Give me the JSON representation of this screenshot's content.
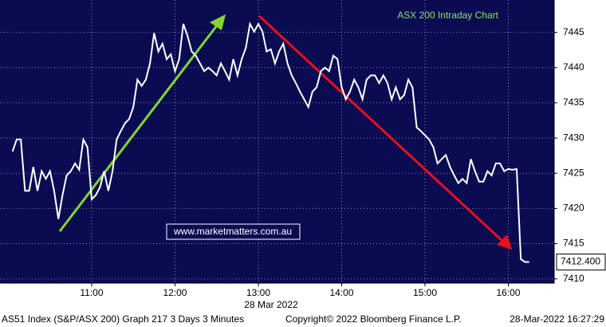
{
  "chart_data": {
    "type": "line",
    "title": "ASX 200 Intraday Chart",
    "watermark": "www.marketmatters.com.au",
    "date_label": "28 Mar 2022",
    "footer": {
      "left": "AS51 Index (S&P/ASX 200) Graph 217 3 Days 3 Minutes",
      "center": "Copyright© 2022 Bloomberg Finance L.P.",
      "right": "28-Mar-2022 16:27:29"
    },
    "color": "#ffffff",
    "x": [
      603,
      606,
      609,
      612,
      615,
      618,
      621,
      624,
      627,
      630,
      633,
      636,
      639,
      642,
      645,
      648,
      651,
      654,
      657,
      660,
      663,
      666,
      669,
      672,
      675,
      678,
      681,
      684,
      687,
      690,
      693,
      696,
      699,
      702,
      705,
      708,
      711,
      714,
      717,
      720,
      723,
      726,
      729,
      732,
      735,
      738,
      741,
      744,
      747,
      750,
      753,
      756,
      759,
      762,
      765,
      768,
      771,
      774,
      777,
      780,
      783,
      786,
      789,
      792,
      795,
      798,
      801,
      804,
      807,
      810,
      813,
      816,
      819,
      822,
      825,
      828,
      831,
      834,
      837,
      840,
      843,
      846,
      849,
      852,
      855,
      858,
      861,
      864,
      867,
      870,
      873,
      876,
      879,
      882,
      885,
      888,
      891,
      894,
      897,
      900,
      903,
      906,
      909,
      912,
      915,
      918,
      921,
      924,
      927,
      930,
      933,
      936,
      939,
      942,
      945,
      948,
      951,
      954,
      957,
      960,
      963,
      966,
      969,
      972,
      975
    ],
    "values": [
      7428.1,
      7429.8,
      7429.8,
      7422.5,
      7422.5,
      7425.9,
      7422.5,
      7425.3,
      7424.2,
      7425.3,
      7422.5,
      7418.5,
      7421.9,
      7424.7,
      7425.3,
      7426.4,
      7425.5,
      7429.8,
      7428.7,
      7421.3,
      7421.9,
      7423.0,
      7425.3,
      7422.5,
      7425.3,
      7429.8,
      7431.0,
      7432.1,
      7432.7,
      7434.4,
      7438.3,
      7437.4,
      7438.3,
      7440.6,
      7444.9,
      7442.3,
      7443.4,
      7441.2,
      7441.9,
      7439.5,
      7441.2,
      7446.2,
      7444.5,
      7442.3,
      7441.7,
      7440.6,
      7439.5,
      7440.0,
      7439.5,
      7438.9,
      7440.6,
      7439.5,
      7438.3,
      7441.2,
      7438.9,
      7441.2,
      7442.8,
      7446.2,
      7445.1,
      7446.2,
      7445.1,
      7442.3,
      7442.6,
      7440.6,
      7442.3,
      7443.4,
      7440.6,
      7438.9,
      7437.8,
      7436.6,
      7435.5,
      7434.4,
      7436.6,
      7437.2,
      7439.5,
      7440.0,
      7439.5,
      7441.7,
      7441.2,
      7437.2,
      7435.5,
      7436.6,
      7438.3,
      7437.2,
      7435.5,
      7438.3,
      7438.9,
      7438.9,
      7437.8,
      7438.9,
      7437.8,
      7435.5,
      7437.2,
      7435.5,
      7436.1,
      7438.3,
      7437.2,
      7431.5,
      7431.0,
      7430.4,
      7429.8,
      7428.7,
      7426.4,
      7427.0,
      7427.6,
      7425.9,
      7424.7,
      7423.6,
      7424.2,
      7423.6,
      7427.0,
      7425.3,
      7423.8,
      7423.8,
      7425.3,
      7424.7,
      7426.4,
      7426.4,
      7425.3,
      7425.6,
      7425.5,
      7425.6,
      7412.8,
      7412.4,
      7412.4
    ],
    "last_price": {
      "value": 7412.4,
      "label": "7412.400"
    },
    "xlim": [
      594,
      993
    ],
    "xticks": [
      {
        "value": 660,
        "label": "11:00"
      },
      {
        "value": 720,
        "label": "12:00"
      },
      {
        "value": 780,
        "label": "13:00"
      },
      {
        "value": 840,
        "label": "14:00"
      },
      {
        "value": 900,
        "label": "15:00"
      },
      {
        "value": 960,
        "label": "16:00"
      }
    ],
    "ylim": [
      7409.4,
      7449.6
    ],
    "yticks": [
      7410,
      7415,
      7420,
      7425,
      7430,
      7435,
      7440,
      7445
    ],
    "grid": true
  }
}
